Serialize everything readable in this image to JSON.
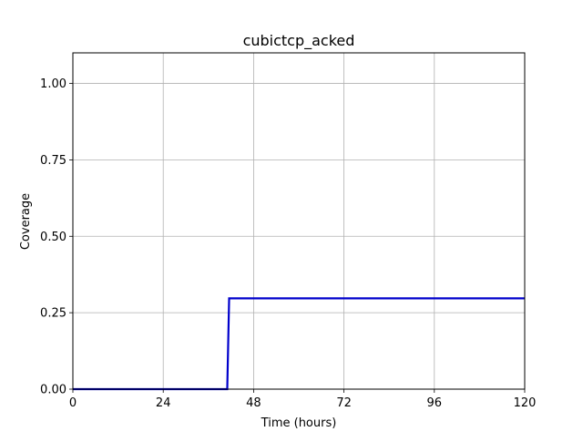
{
  "chart_data": {
    "type": "line",
    "title": "cubictcp_acked",
    "xlabel": "Time (hours)",
    "ylabel": "Coverage",
    "xlim": [
      0,
      120
    ],
    "ylim": [
      0,
      1.1
    ],
    "xticks": [
      0,
      24,
      48,
      72,
      96,
      120
    ],
    "xtick_labels": [
      "0",
      "24",
      "48",
      "72",
      "96",
      "120"
    ],
    "yticks": [
      0,
      0.25,
      0.5,
      0.75,
      1.0
    ],
    "ytick_labels": [
      "0.00",
      "0.25",
      "0.50",
      "0.75",
      "1.00"
    ],
    "grid": true,
    "series": [
      {
        "color": "#0000cc",
        "x": [
          0,
          41,
          41.5,
          120
        ],
        "y": [
          0,
          0,
          0.297,
          0.297
        ]
      }
    ]
  }
}
